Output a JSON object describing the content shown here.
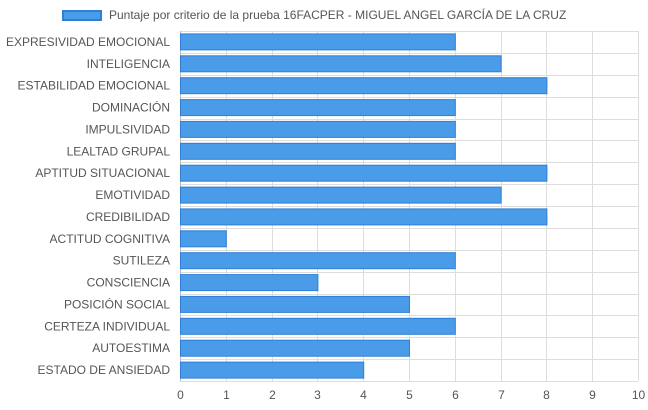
{
  "chart_data": {
    "type": "bar",
    "orientation": "horizontal",
    "legend": {
      "position": "top",
      "label": "Puntaje por criterio de la prueba 16FACPER - MIGUEL ANGEL GARCÍA DE LA CRUZ"
    },
    "series": [
      {
        "name": "Puntaje por criterio de la prueba 16FACPER - MIGUEL ANGEL GARCÍA DE LA CRUZ",
        "values": [
          6,
          7,
          8,
          6,
          6,
          6,
          8,
          7,
          8,
          1,
          6,
          3,
          5,
          6,
          5,
          4
        ]
      }
    ],
    "categories": [
      "EXPRESIVIDAD EMOCIONAL",
      "INTELIGENCIA",
      "ESTABILIDAD EMOCIONAL",
      "DOMINACIÓN",
      "IMPULSIVIDAD",
      "LEALTAD GRUPAL",
      "APTITUD SITUACIONAL",
      "EMOTIVIDAD",
      "CREDIBILIDAD",
      "ACTITUD COGNITIVA",
      "SUTILEZA",
      "CONSCIENCIA",
      "POSICIÓN SOCIAL",
      "CERTEZA INDIVIDUAL",
      "AUTOESTIMA",
      "ESTADO DE ANSIEDAD"
    ],
    "xlim": [
      0,
      10
    ],
    "xticks": [
      "0",
      "1",
      "2",
      "3",
      "4",
      "5",
      "6",
      "7",
      "8",
      "9",
      "10"
    ],
    "grid": true,
    "colors": {
      "bar_fill": "#4a9be8",
      "bar_stroke": "#2f7fd6",
      "grid": "#dddddd",
      "axis": "#bbbbbb"
    }
  }
}
